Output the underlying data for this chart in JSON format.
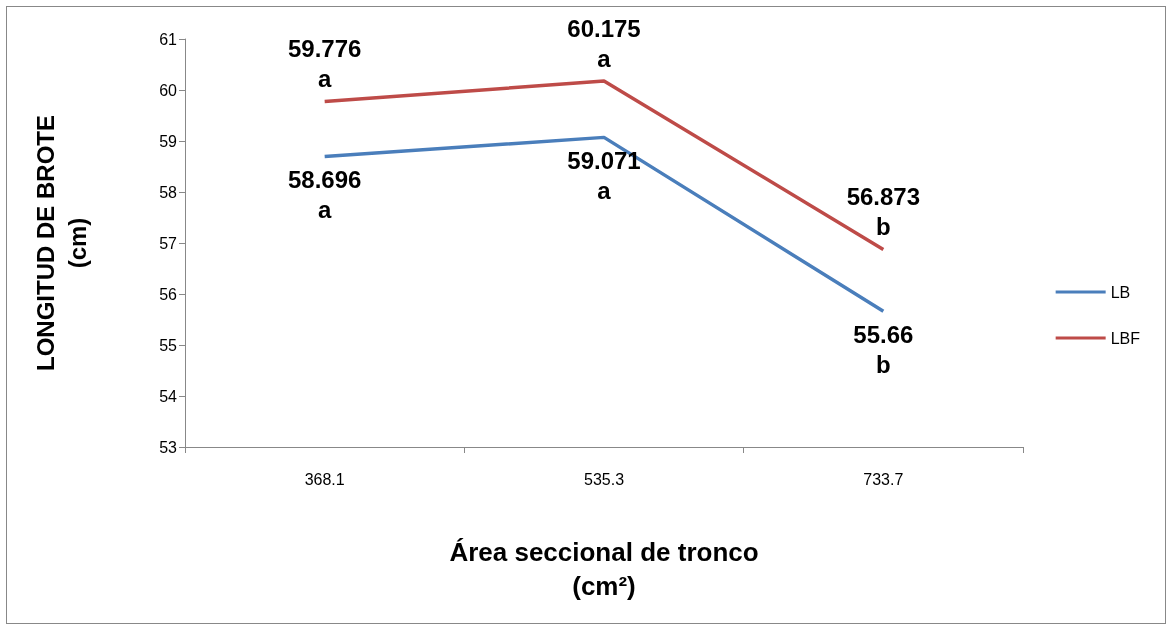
{
  "chart_data": {
    "type": "line",
    "xlabel": "Área seccional de tronco\n(cm²)",
    "ylabel": "LONGITUD DE BROTE\n(cm)",
    "categories": [
      "368.1",
      "535.3",
      "733.7"
    ],
    "series": [
      {
        "name": "LB",
        "color": "#4a7ebb",
        "values": [
          58.696,
          59.071,
          55.66
        ],
        "value_labels": [
          "58.696\na",
          "59.071\na",
          "55.66\nb"
        ]
      },
      {
        "name": "LBF",
        "color": "#be4b48",
        "values": [
          59.776,
          60.175,
          56.873
        ],
        "value_labels": [
          "59.776\na",
          "60.175\na",
          "56.873\nb"
        ]
      }
    ],
    "ylim": [
      53,
      61
    ],
    "yticks": [
      53,
      54,
      55,
      56,
      57,
      58,
      59,
      60,
      61
    ],
    "grid": false,
    "legend": "right",
    "marker": "none",
    "line_style": "solid"
  }
}
